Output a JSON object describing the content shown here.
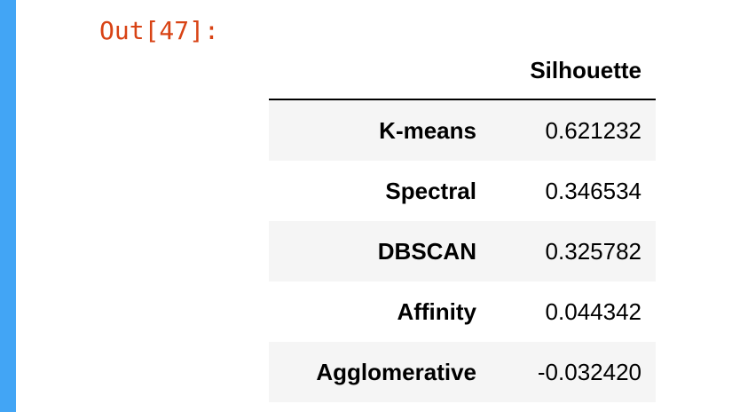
{
  "output": {
    "prompt": "Out[47]:"
  },
  "table": {
    "index_header": "",
    "columns": [
      "Silhouette"
    ],
    "rows": [
      {
        "label": "K-means",
        "value": "0.621232"
      },
      {
        "label": "Spectral",
        "value": "0.346534"
      },
      {
        "label": "DBSCAN",
        "value": "0.325782"
      },
      {
        "label": "Affinity",
        "value": "0.044342"
      },
      {
        "label": "Agglomerative",
        "value": "-0.032420"
      }
    ]
  },
  "colors": {
    "cell_bar": "#42a5f5",
    "prompt": "#d84315",
    "row_stripe": "#f5f5f5"
  }
}
